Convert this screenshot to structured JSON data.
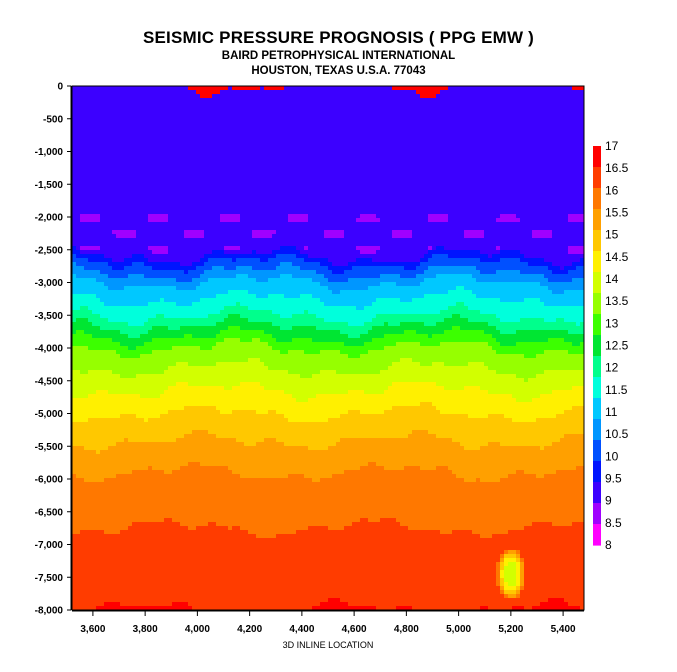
{
  "header": {
    "title": "SEISMIC PRESSURE PROGNOSIS ( PPG EMW )",
    "subtitle": "BAIRD PETROPHYSICAL INTERNATIONAL",
    "address": "HOUSTON,  TEXAS  U.S.A.  77043"
  },
  "chart_data": {
    "type": "heatmap",
    "title": "SEISMIC PRESSURE PROGNOSIS ( PPG EMW )",
    "subtitle": "BAIRD PETROPHYSICAL INTERNATIONAL",
    "xlabel": "3D INLINE LOCATION",
    "ylabel": "",
    "xlim": [
      3520,
      5480
    ],
    "ylim": [
      -8000,
      0
    ],
    "x_ticks": [
      3600,
      3800,
      4000,
      4200,
      4400,
      4600,
      4800,
      5000,
      5200,
      5400
    ],
    "x_tick_labels": [
      "3,600",
      "3,800",
      "4,000",
      "4,200",
      "4,400",
      "4,600",
      "4,800",
      "5,000",
      "5,200",
      "5,400"
    ],
    "y_ticks": [
      0,
      -500,
      -1000,
      -1500,
      -2000,
      -2500,
      -3000,
      -3500,
      -4000,
      -4500,
      -5000,
      -5500,
      -6000,
      -6500,
      -7000,
      -7500,
      -8000
    ],
    "y_tick_labels": [
      "0",
      "-500",
      "-1,000",
      "-1,500",
      "-2,000",
      "-2,500",
      "-3,000",
      "-3,500",
      "-4,000",
      "-4,500",
      "-5,000",
      "-5,500",
      "-6,000",
      "-6,500",
      "-7,000",
      "-7,500",
      "-8,000"
    ],
    "colorbar": {
      "levels": [
        17,
        16.5,
        16,
        15.5,
        15,
        14.5,
        14,
        13.5,
        13,
        12.5,
        12,
        11.5,
        11,
        10.5,
        10,
        9.5,
        9,
        8.5,
        8
      ],
      "labels": [
        "17",
        "16.5",
        "16",
        "15.5",
        "15",
        "14.5",
        "14",
        "13.5",
        "13",
        "12.5",
        "12",
        "11.5",
        "11",
        "10.5",
        "10",
        "9.5",
        "9",
        "8.5",
        "8"
      ],
      "colors": [
        "#ff0000",
        "#ff3c00",
        "#ff7800",
        "#ffa000",
        "#ffc800",
        "#fff000",
        "#d2ff00",
        "#96ff00",
        "#3cff00",
        "#00e632",
        "#00ff8c",
        "#00ffdc",
        "#00c8ff",
        "#0096ff",
        "#0050ff",
        "#0014ff",
        "#3c00ff",
        "#a000ff",
        "#ff00ff"
      ]
    },
    "field": {
      "description_levels": [
        {
          "depth": 0,
          "ppg": 9.0
        },
        {
          "depth": -2500,
          "ppg": 9.0
        },
        {
          "depth": -2700,
          "ppg": 10.0
        },
        {
          "depth": -3000,
          "ppg": 11.0
        },
        {
          "depth": -3500,
          "ppg": 12.0
        },
        {
          "depth": -4000,
          "ppg": 13.5
        },
        {
          "depth": -4500,
          "ppg": 14.3
        },
        {
          "depth": -5000,
          "ppg": 15.0
        },
        {
          "depth": -5500,
          "ppg": 15.6
        },
        {
          "depth": -6000,
          "ppg": 16.1
        },
        {
          "depth": -6500,
          "ppg": 16.4
        },
        {
          "depth": -7000,
          "ppg": 16.6
        },
        {
          "depth": -7500,
          "ppg": 16.8
        },
        {
          "depth": -8000,
          "ppg": 17.0
        }
      ],
      "anomaly": {
        "x": 5200,
        "depth": -7450,
        "ppg": 14.0
      }
    },
    "grid": false,
    "legend": "right"
  }
}
